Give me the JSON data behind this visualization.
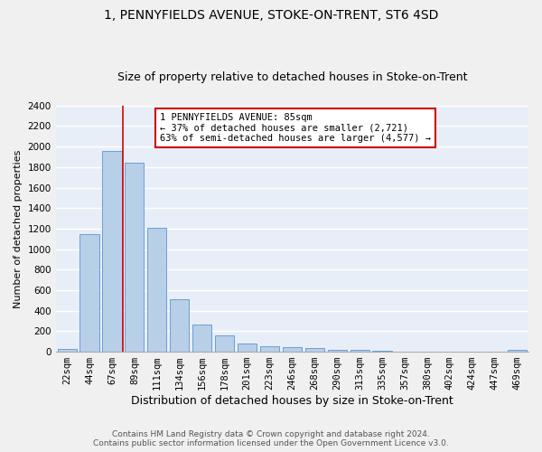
{
  "title": "1, PENNYFIELDS AVENUE, STOKE-ON-TRENT, ST6 4SD",
  "subtitle": "Size of property relative to detached houses in Stoke-on-Trent",
  "xlabel": "Distribution of detached houses by size in Stoke-on-Trent",
  "ylabel": "Number of detached properties",
  "categories": [
    "22sqm",
    "44sqm",
    "67sqm",
    "89sqm",
    "111sqm",
    "134sqm",
    "156sqm",
    "178sqm",
    "201sqm",
    "223sqm",
    "246sqm",
    "268sqm",
    "290sqm",
    "313sqm",
    "335sqm",
    "357sqm",
    "380sqm",
    "402sqm",
    "424sqm",
    "447sqm",
    "469sqm"
  ],
  "values": [
    30,
    1150,
    1960,
    1840,
    1210,
    510,
    265,
    155,
    80,
    50,
    45,
    40,
    22,
    18,
    10,
    0,
    0,
    0,
    0,
    0,
    18
  ],
  "bar_color": "#b8cfe8",
  "bar_edge_color": "#6a9fd8",
  "annotation_text": "1 PENNYFIELDS AVENUE: 85sqm\n← 37% of detached houses are smaller (2,721)\n63% of semi-detached houses are larger (4,577) →",
  "annotation_box_color": "#ffffff",
  "annotation_box_edge_color": "#cc0000",
  "vline_color": "#dd0000",
  "ylim": [
    0,
    2400
  ],
  "yticks": [
    0,
    200,
    400,
    600,
    800,
    1000,
    1200,
    1400,
    1600,
    1800,
    2000,
    2200,
    2400
  ],
  "footer_line1": "Contains HM Land Registry data © Crown copyright and database right 2024.",
  "footer_line2": "Contains public sector information licensed under the Open Government Licence v3.0.",
  "title_fontsize": 10,
  "subtitle_fontsize": 9,
  "ylabel_fontsize": 8,
  "xlabel_fontsize": 9,
  "tick_fontsize": 7.5,
  "footer_fontsize": 6.5,
  "bg_color": "#e8eef8",
  "fig_bg_color": "#f0f0f0",
  "grid_color": "#ffffff",
  "vline_x_index": 2.5
}
